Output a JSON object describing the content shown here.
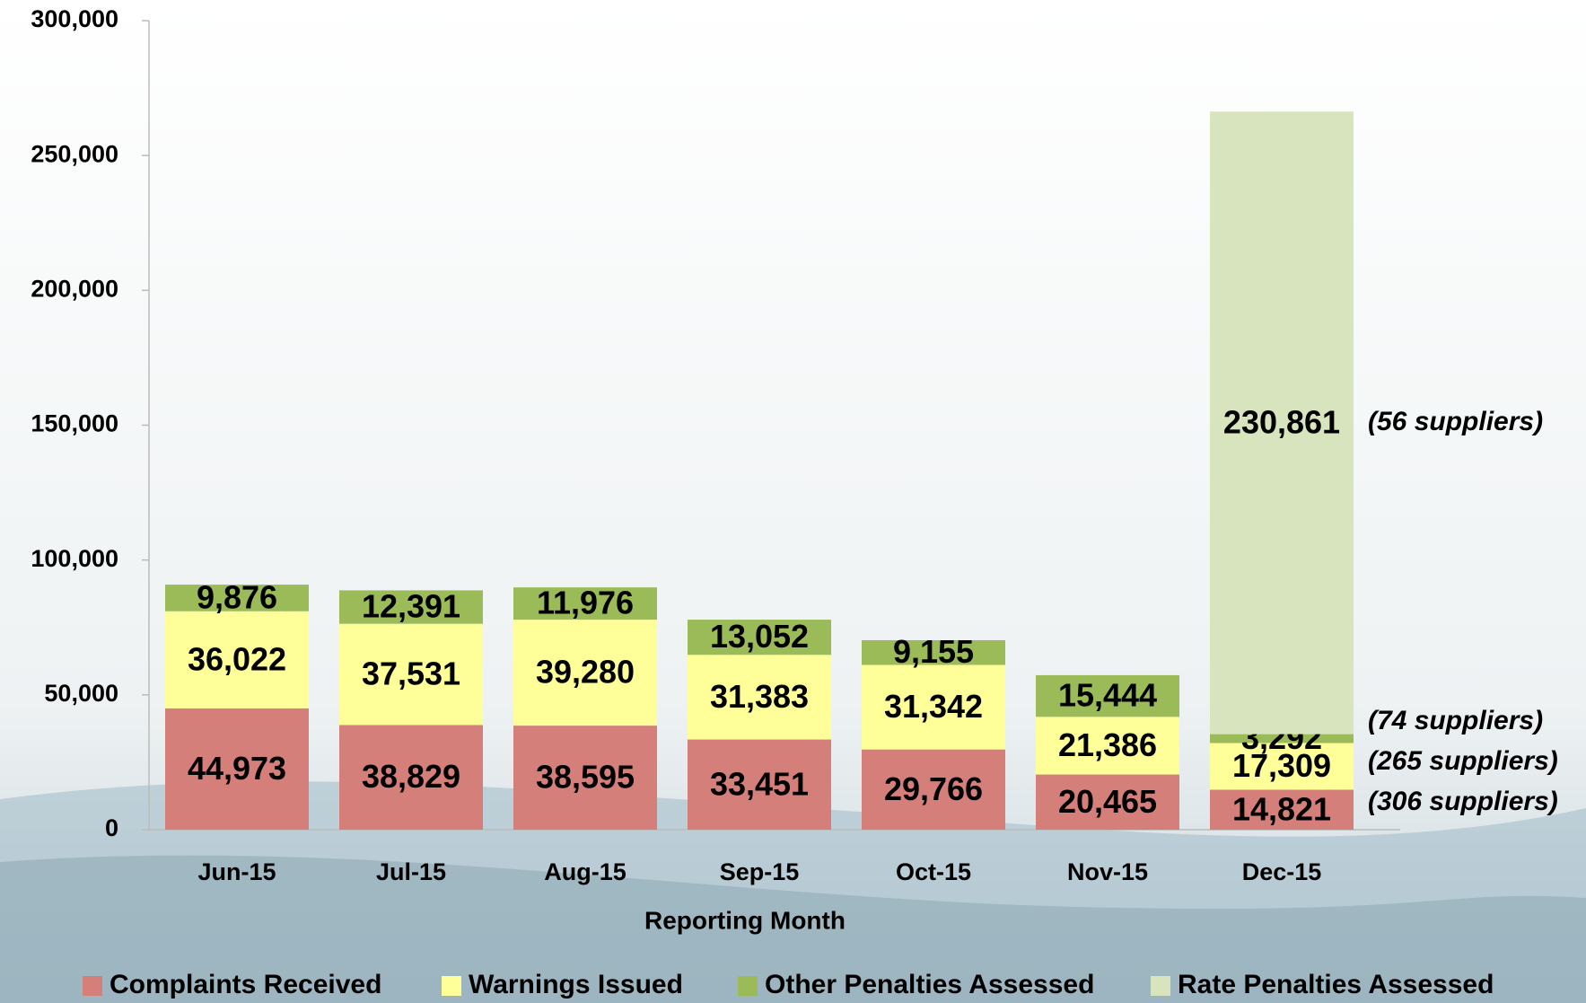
{
  "chart_data": {
    "type": "stacked-bar",
    "x_label": "Reporting Month",
    "categories": [
      "Jun-15",
      "Jul-15",
      "Aug-15",
      "Sep-15",
      "Oct-15",
      "Nov-15",
      "Dec-15"
    ],
    "series": [
      {
        "name": "Complaints Received",
        "color": "#d47f7a",
        "values": [
          44973,
          38829,
          38595,
          33451,
          29766,
          20465,
          14821
        ],
        "value_labels": [
          "44,973",
          "38,829",
          "38,595",
          "33,451",
          "29,766",
          "20,465",
          "14,821"
        ]
      },
      {
        "name": "Warnings Issued",
        "color": "#ffff99",
        "values": [
          36022,
          37531,
          39280,
          31383,
          31342,
          21386,
          17309
        ],
        "value_labels": [
          "36,022",
          "37,531",
          "39,280",
          "31,383",
          "31,342",
          "21,386",
          "17,309"
        ]
      },
      {
        "name": "Other Penalties Assessed",
        "color": "#9bbb59",
        "values": [
          9876,
          12391,
          11976,
          13052,
          9155,
          15444,
          3292
        ],
        "value_labels": [
          "9,876",
          "12,391",
          "11,976",
          "13,052",
          "9,155",
          "15,444",
          "3,292"
        ]
      },
      {
        "name": "Rate Penalties Assessed",
        "color": "#d7e4bd",
        "values": [
          null,
          null,
          null,
          null,
          null,
          null,
          230861
        ],
        "value_labels": [
          null,
          null,
          null,
          null,
          null,
          null,
          "230,861"
        ]
      }
    ],
    "annotations": [
      "(306 suppliers)",
      "(265 suppliers)",
      "(74 suppliers)",
      "(56 suppliers)"
    ],
    "ylim": [
      0,
      300000
    ],
    "yticks": [
      0,
      {
        "value": 50000,
        "label": "50,000"
      },
      {
        "value": 100000,
        "label": "100,000"
      },
      {
        "value": 150000,
        "label": "150,000"
      },
      {
        "value": 200000,
        "label": "200,000"
      },
      {
        "value": 250000,
        "label": "250,000"
      },
      {
        "value": 300000,
        "label": "300,000"
      }
    ],
    "legend": "bottom"
  }
}
